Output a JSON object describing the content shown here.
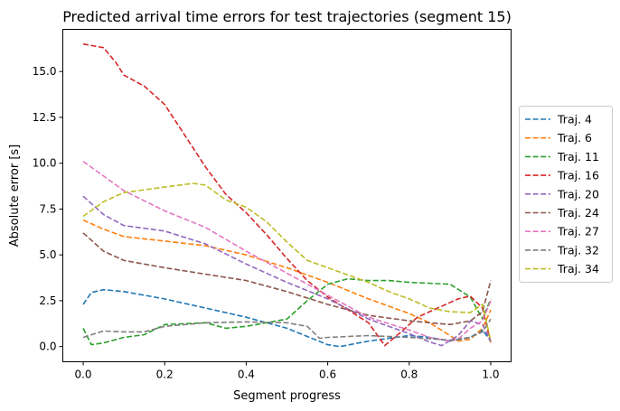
{
  "chart_data": {
    "type": "line",
    "title": "Predicted arrival time errors for test trajectories (segment 15)",
    "xlabel": "Segment progress",
    "ylabel": "Absolute error [s]",
    "xlim": [
      -0.05,
      1.05
    ],
    "ylim": [
      -0.83,
      17.3
    ],
    "xticks": [
      0.0,
      0.2,
      0.4,
      0.6,
      0.8,
      1.0
    ],
    "xtick_labels": [
      "0.0",
      "0.2",
      "0.4",
      "0.6",
      "0.8",
      "1.0"
    ],
    "yticks": [
      0.0,
      2.5,
      5.0,
      7.5,
      10.0,
      12.5,
      15.0
    ],
    "ytick_labels": [
      "0.0",
      "2.5",
      "5.0",
      "7.5",
      "10.0",
      "12.5",
      "15.0"
    ],
    "grid": false,
    "legend_position": "right-outside",
    "line_style": "dashed",
    "series": [
      {
        "name": "Traj. 4",
        "color": "#1f77b4",
        "points": [
          [
            0,
            2.3
          ],
          [
            0.02,
            2.95
          ],
          [
            0.05,
            3.1
          ],
          [
            0.1,
            3.0
          ],
          [
            0.2,
            2.6
          ],
          [
            0.3,
            2.1
          ],
          [
            0.4,
            1.6
          ],
          [
            0.5,
            1.0
          ],
          [
            0.55,
            0.55
          ],
          [
            0.6,
            0.1
          ],
          [
            0.63,
            0.0
          ],
          [
            0.7,
            0.3
          ],
          [
            0.8,
            0.6
          ],
          [
            0.85,
            0.5
          ],
          [
            0.9,
            0.3
          ],
          [
            0.95,
            0.5
          ],
          [
            0.98,
            0.9
          ],
          [
            1.0,
            0.3
          ]
        ]
      },
      {
        "name": "Traj. 6",
        "color": "#ff7f0e",
        "points": [
          [
            0,
            6.9
          ],
          [
            0.05,
            6.4
          ],
          [
            0.1,
            6.0
          ],
          [
            0.2,
            5.75
          ],
          [
            0.3,
            5.5
          ],
          [
            0.4,
            5.0
          ],
          [
            0.5,
            4.3
          ],
          [
            0.6,
            3.5
          ],
          [
            0.7,
            2.6
          ],
          [
            0.8,
            1.8
          ],
          [
            0.85,
            1.3
          ],
          [
            0.9,
            0.6
          ],
          [
            0.92,
            0.3
          ],
          [
            0.95,
            0.4
          ],
          [
            0.98,
            1.0
          ],
          [
            1.0,
            2.0
          ]
        ]
      },
      {
        "name": "Traj. 11",
        "color": "#2ca02c",
        "points": [
          [
            0,
            1.0
          ],
          [
            0.02,
            0.1
          ],
          [
            0.05,
            0.2
          ],
          [
            0.1,
            0.5
          ],
          [
            0.15,
            0.65
          ],
          [
            0.2,
            1.2
          ],
          [
            0.3,
            1.3
          ],
          [
            0.35,
            1.0
          ],
          [
            0.4,
            1.1
          ],
          [
            0.5,
            1.5
          ],
          [
            0.55,
            2.5
          ],
          [
            0.6,
            3.4
          ],
          [
            0.65,
            3.7
          ],
          [
            0.7,
            3.6
          ],
          [
            0.75,
            3.6
          ],
          [
            0.8,
            3.5
          ],
          [
            0.9,
            3.4
          ],
          [
            0.95,
            2.7
          ],
          [
            0.98,
            1.5
          ],
          [
            1.0,
            2.6
          ]
        ]
      },
      {
        "name": "Traj. 16",
        "color": "#d62728",
        "points": [
          [
            0,
            16.5
          ],
          [
            0.05,
            16.3
          ],
          [
            0.08,
            15.5
          ],
          [
            0.1,
            14.8
          ],
          [
            0.15,
            14.2
          ],
          [
            0.2,
            13.2
          ],
          [
            0.25,
            11.5
          ],
          [
            0.3,
            9.8
          ],
          [
            0.35,
            8.3
          ],
          [
            0.4,
            7.3
          ],
          [
            0.45,
            6.1
          ],
          [
            0.5,
            4.8
          ],
          [
            0.55,
            3.6
          ],
          [
            0.6,
            2.7
          ],
          [
            0.7,
            1.3
          ],
          [
            0.74,
            0.05
          ],
          [
            0.78,
            0.8
          ],
          [
            0.82,
            1.6
          ],
          [
            0.87,
            2.1
          ],
          [
            0.92,
            2.6
          ],
          [
            0.95,
            2.75
          ],
          [
            0.98,
            2.1
          ],
          [
            1.0,
            0.2
          ]
        ]
      },
      {
        "name": "Traj. 20",
        "color": "#9467bd",
        "points": [
          [
            0,
            8.2
          ],
          [
            0.05,
            7.2
          ],
          [
            0.1,
            6.6
          ],
          [
            0.2,
            6.3
          ],
          [
            0.3,
            5.6
          ],
          [
            0.4,
            4.5
          ],
          [
            0.5,
            3.5
          ],
          [
            0.6,
            2.6
          ],
          [
            0.7,
            1.5
          ],
          [
            0.8,
            0.7
          ],
          [
            0.85,
            0.25
          ],
          [
            0.88,
            0.05
          ],
          [
            0.92,
            0.6
          ],
          [
            0.95,
            1.4
          ],
          [
            0.98,
            1.2
          ],
          [
            1.0,
            0.3
          ]
        ]
      },
      {
        "name": "Traj. 24",
        "color": "#8c564b",
        "points": [
          [
            0,
            6.2
          ],
          [
            0.05,
            5.2
          ],
          [
            0.1,
            4.7
          ],
          [
            0.2,
            4.3
          ],
          [
            0.3,
            3.95
          ],
          [
            0.4,
            3.6
          ],
          [
            0.5,
            3.0
          ],
          [
            0.6,
            2.3
          ],
          [
            0.7,
            1.7
          ],
          [
            0.8,
            1.4
          ],
          [
            0.9,
            1.2
          ],
          [
            0.95,
            1.4
          ],
          [
            0.98,
            1.9
          ],
          [
            1.0,
            3.6
          ]
        ]
      },
      {
        "name": "Traj. 27",
        "color": "#e377c2",
        "points": [
          [
            0,
            10.1
          ],
          [
            0.05,
            9.3
          ],
          [
            0.1,
            8.5
          ],
          [
            0.2,
            7.4
          ],
          [
            0.3,
            6.5
          ],
          [
            0.4,
            5.2
          ],
          [
            0.5,
            4.0
          ],
          [
            0.6,
            2.8
          ],
          [
            0.7,
            1.6
          ],
          [
            0.8,
            0.9
          ],
          [
            0.85,
            0.5
          ],
          [
            0.9,
            0.3
          ],
          [
            0.92,
            0.4
          ],
          [
            0.95,
            1.0
          ],
          [
            0.98,
            1.4
          ],
          [
            1.0,
            2.5
          ]
        ]
      },
      {
        "name": "Traj. 32",
        "color": "#7f7f7f",
        "points": [
          [
            0,
            0.5
          ],
          [
            0.05,
            0.85
          ],
          [
            0.1,
            0.8
          ],
          [
            0.15,
            0.8
          ],
          [
            0.2,
            1.1
          ],
          [
            0.3,
            1.3
          ],
          [
            0.4,
            1.35
          ],
          [
            0.5,
            1.3
          ],
          [
            0.55,
            1.1
          ],
          [
            0.58,
            0.45
          ],
          [
            0.6,
            0.5
          ],
          [
            0.7,
            0.6
          ],
          [
            0.8,
            0.5
          ],
          [
            0.9,
            0.35
          ],
          [
            0.95,
            0.5
          ],
          [
            0.98,
            0.8
          ],
          [
            1.0,
            1.5
          ]
        ]
      },
      {
        "name": "Traj. 34",
        "color": "#bcbd22",
        "points": [
          [
            0,
            7.1
          ],
          [
            0.05,
            7.9
          ],
          [
            0.1,
            8.4
          ],
          [
            0.2,
            8.7
          ],
          [
            0.27,
            8.9
          ],
          [
            0.3,
            8.8
          ],
          [
            0.35,
            8.0
          ],
          [
            0.4,
            7.6
          ],
          [
            0.45,
            6.8
          ],
          [
            0.5,
            5.7
          ],
          [
            0.55,
            4.7
          ],
          [
            0.6,
            4.3
          ],
          [
            0.7,
            3.5
          ],
          [
            0.75,
            3.0
          ],
          [
            0.8,
            2.6
          ],
          [
            0.85,
            2.1
          ],
          [
            0.9,
            1.9
          ],
          [
            0.95,
            1.85
          ],
          [
            0.98,
            2.3
          ],
          [
            1.0,
            0.3
          ]
        ]
      }
    ]
  }
}
